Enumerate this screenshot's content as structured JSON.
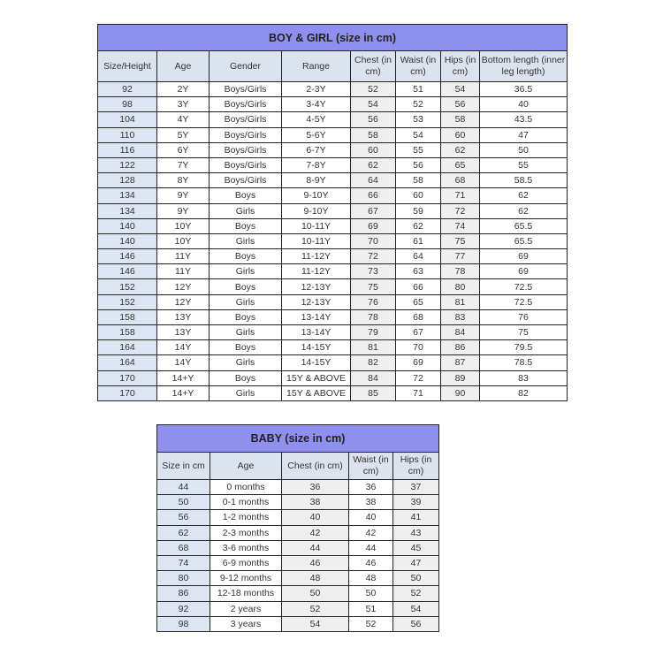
{
  "boy_girl": {
    "title": "BOY & GIRL (size in cm)",
    "headers": [
      "Size/Height",
      "Age",
      "Gender",
      "Range",
      "Chest (in cm)",
      "Waist (in cm)",
      "Hips (in cm)",
      "Bottom length (inner leg length)"
    ],
    "rows": [
      [
        "92",
        "2Y",
        "Boys/Girls",
        "2-3Y",
        "52",
        "51",
        "54",
        "36.5"
      ],
      [
        "98",
        "3Y",
        "Boys/Girls",
        "3-4Y",
        "54",
        "52",
        "56",
        "40"
      ],
      [
        "104",
        "4Y",
        "Boys/Girls",
        "4-5Y",
        "56",
        "53",
        "58",
        "43.5"
      ],
      [
        "110",
        "5Y",
        "Boys/Girls",
        "5-6Y",
        "58",
        "54",
        "60",
        "47"
      ],
      [
        "116",
        "6Y",
        "Boys/Girls",
        "6-7Y",
        "60",
        "55",
        "62",
        "50"
      ],
      [
        "122",
        "7Y",
        "Boys/Girls",
        "7-8Y",
        "62",
        "56",
        "65",
        "55"
      ],
      [
        "128",
        "8Y",
        "Boys/Girls",
        "8-9Y",
        "64",
        "58",
        "68",
        "58.5"
      ],
      [
        "134",
        "9Y",
        "Boys",
        "9-10Y",
        "66",
        "60",
        "71",
        "62"
      ],
      [
        "134",
        "9Y",
        "Girls",
        "9-10Y",
        "67",
        "59",
        "72",
        "62"
      ],
      [
        "140",
        "10Y",
        "Boys",
        "10-11Y",
        "69",
        "62",
        "74",
        "65.5"
      ],
      [
        "140",
        "10Y",
        "Girls",
        "10-11Y",
        "70",
        "61",
        "75",
        "65.5"
      ],
      [
        "146",
        "11Y",
        "Boys",
        "11-12Y",
        "72",
        "64",
        "77",
        "69"
      ],
      [
        "146",
        "11Y",
        "Girls",
        "11-12Y",
        "73",
        "63",
        "78",
        "69"
      ],
      [
        "152",
        "12Y",
        "Boys",
        "12-13Y",
        "75",
        "66",
        "80",
        "72.5"
      ],
      [
        "152",
        "12Y",
        "Girls",
        "12-13Y",
        "76",
        "65",
        "81",
        "72.5"
      ],
      [
        "158",
        "13Y",
        "Boys",
        "13-14Y",
        "78",
        "68",
        "83",
        "76"
      ],
      [
        "158",
        "13Y",
        "Girls",
        "13-14Y",
        "79",
        "67",
        "84",
        "75"
      ],
      [
        "164",
        "14Y",
        "Boys",
        "14-15Y",
        "81",
        "70",
        "86",
        "79.5"
      ],
      [
        "164",
        "14Y",
        "Girls",
        "14-15Y",
        "82",
        "69",
        "87",
        "78.5"
      ],
      [
        "170",
        "14+Y",
        "Boys",
        "15Y & ABOVE",
        "84",
        "72",
        "89",
        "83"
      ],
      [
        "170",
        "14+Y",
        "Girls",
        "15Y & ABOVE",
        "85",
        "71",
        "90",
        "82"
      ]
    ]
  },
  "baby": {
    "title": "BABY (size in cm)",
    "headers": [
      "Size in cm",
      "Age",
      "Chest (in cm)",
      "Waist (in cm)",
      "Hips (in cm)"
    ],
    "rows": [
      [
        "44",
        "0 months",
        "36",
        "36",
        "37"
      ],
      [
        "50",
        "0-1 months",
        "38",
        "38",
        "39"
      ],
      [
        "56",
        "1-2 months",
        "40",
        "40",
        "41"
      ],
      [
        "62",
        "2-3 months",
        "42",
        "42",
        "43"
      ],
      [
        "68",
        "3-6 months",
        "44",
        "44",
        "45"
      ],
      [
        "74",
        "6-9 months",
        "46",
        "46",
        "47"
      ],
      [
        "80",
        "9-12 months",
        "48",
        "48",
        "50"
      ],
      [
        "86",
        "12-18 months",
        "50",
        "50",
        "52"
      ],
      [
        "92",
        "2 years",
        "52",
        "51",
        "54"
      ],
      [
        "98",
        "3 years",
        "54",
        "52",
        "56"
      ]
    ]
  },
  "colors": {
    "title_bg": "#8f8ff0",
    "header_bg": "#dbe3ee",
    "size_col_bg": "#dce6f2"
  }
}
